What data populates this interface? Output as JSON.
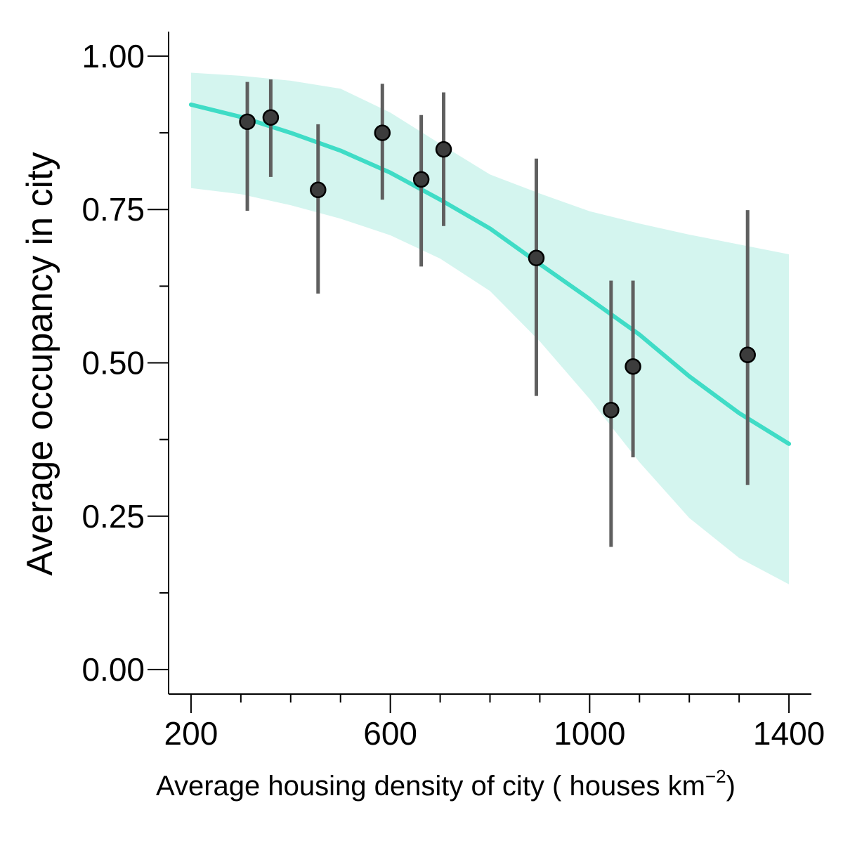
{
  "chart_data": {
    "type": "scatter",
    "title": "",
    "xlabel": "Average housing density of city ( houses  km",
    "xlabel_sup": "−2",
    "xlabel_close": ")",
    "ylabel": "Average occupancy in city",
    "xlim": [
      155,
      1445
    ],
    "ylim": [
      -0.04,
      1.04
    ],
    "grid": false,
    "legend": "none",
    "x_ticks": [
      {
        "value": 200,
        "label": "200"
      },
      {
        "value": 600,
        "label": "600"
      },
      {
        "value": 1000,
        "label": "1000"
      },
      {
        "value": 1400,
        "label": "1400"
      }
    ],
    "x_minor_ticks": [
      300,
      400,
      500,
      700,
      800,
      900,
      1100,
      1200,
      1300
    ],
    "y_ticks": [
      {
        "value": 0.0,
        "label": "0.00"
      },
      {
        "value": 0.25,
        "label": "0.25"
      },
      {
        "value": 0.5,
        "label": "0.50"
      },
      {
        "value": 0.75,
        "label": "0.75"
      },
      {
        "value": 1.0,
        "label": "1.00"
      }
    ],
    "y_minor_ticks": [
      0.125,
      0.375,
      0.625,
      0.875
    ],
    "points": [
      {
        "x": 313,
        "y": 0.893,
        "lo": 0.748,
        "hi": 0.958
      },
      {
        "x": 360,
        "y": 0.9,
        "lo": 0.803,
        "hi": 0.962
      },
      {
        "x": 455,
        "y": 0.782,
        "lo": 0.613,
        "hi": 0.889
      },
      {
        "x": 584,
        "y": 0.875,
        "lo": 0.766,
        "hi": 0.955
      },
      {
        "x": 662,
        "y": 0.799,
        "lo": 0.657,
        "hi": 0.904
      },
      {
        "x": 707,
        "y": 0.848,
        "lo": 0.723,
        "hi": 0.941
      },
      {
        "x": 893,
        "y": 0.671,
        "lo": 0.446,
        "hi": 0.833
      },
      {
        "x": 1043,
        "y": 0.423,
        "lo": 0.2,
        "hi": 0.634
      },
      {
        "x": 1087,
        "y": 0.494,
        "lo": 0.346,
        "hi": 0.634
      },
      {
        "x": 1317,
        "y": 0.513,
        "lo": 0.301,
        "hi": 0.749
      }
    ],
    "fit_line": {
      "x": [
        200,
        300,
        400,
        500,
        600,
        700,
        800,
        900,
        1000,
        1100,
        1200,
        1300,
        1400
      ],
      "y": [
        0.921,
        0.901,
        0.875,
        0.846,
        0.81,
        0.766,
        0.719,
        0.661,
        0.604,
        0.546,
        0.478,
        0.418,
        0.368
      ]
    },
    "confidence_band": {
      "x": [
        200,
        300,
        400,
        500,
        600,
        700,
        800,
        900,
        1000,
        1100,
        1200,
        1300,
        1400
      ],
      "lo": [
        0.785,
        0.775,
        0.757,
        0.735,
        0.708,
        0.67,
        0.617,
        0.535,
        0.441,
        0.338,
        0.247,
        0.182,
        0.139
      ],
      "hi": [
        0.973,
        0.968,
        0.96,
        0.947,
        0.908,
        0.857,
        0.807,
        0.776,
        0.747,
        0.727,
        0.709,
        0.693,
        0.677
      ]
    },
    "colors": {
      "fit_line": "#3fdcc6",
      "band": "#d4f5ef",
      "errorbar": "#5f5f5f",
      "point_fill": "#3c3c3c",
      "point_stroke": "#000000",
      "axis": "#000000"
    }
  }
}
